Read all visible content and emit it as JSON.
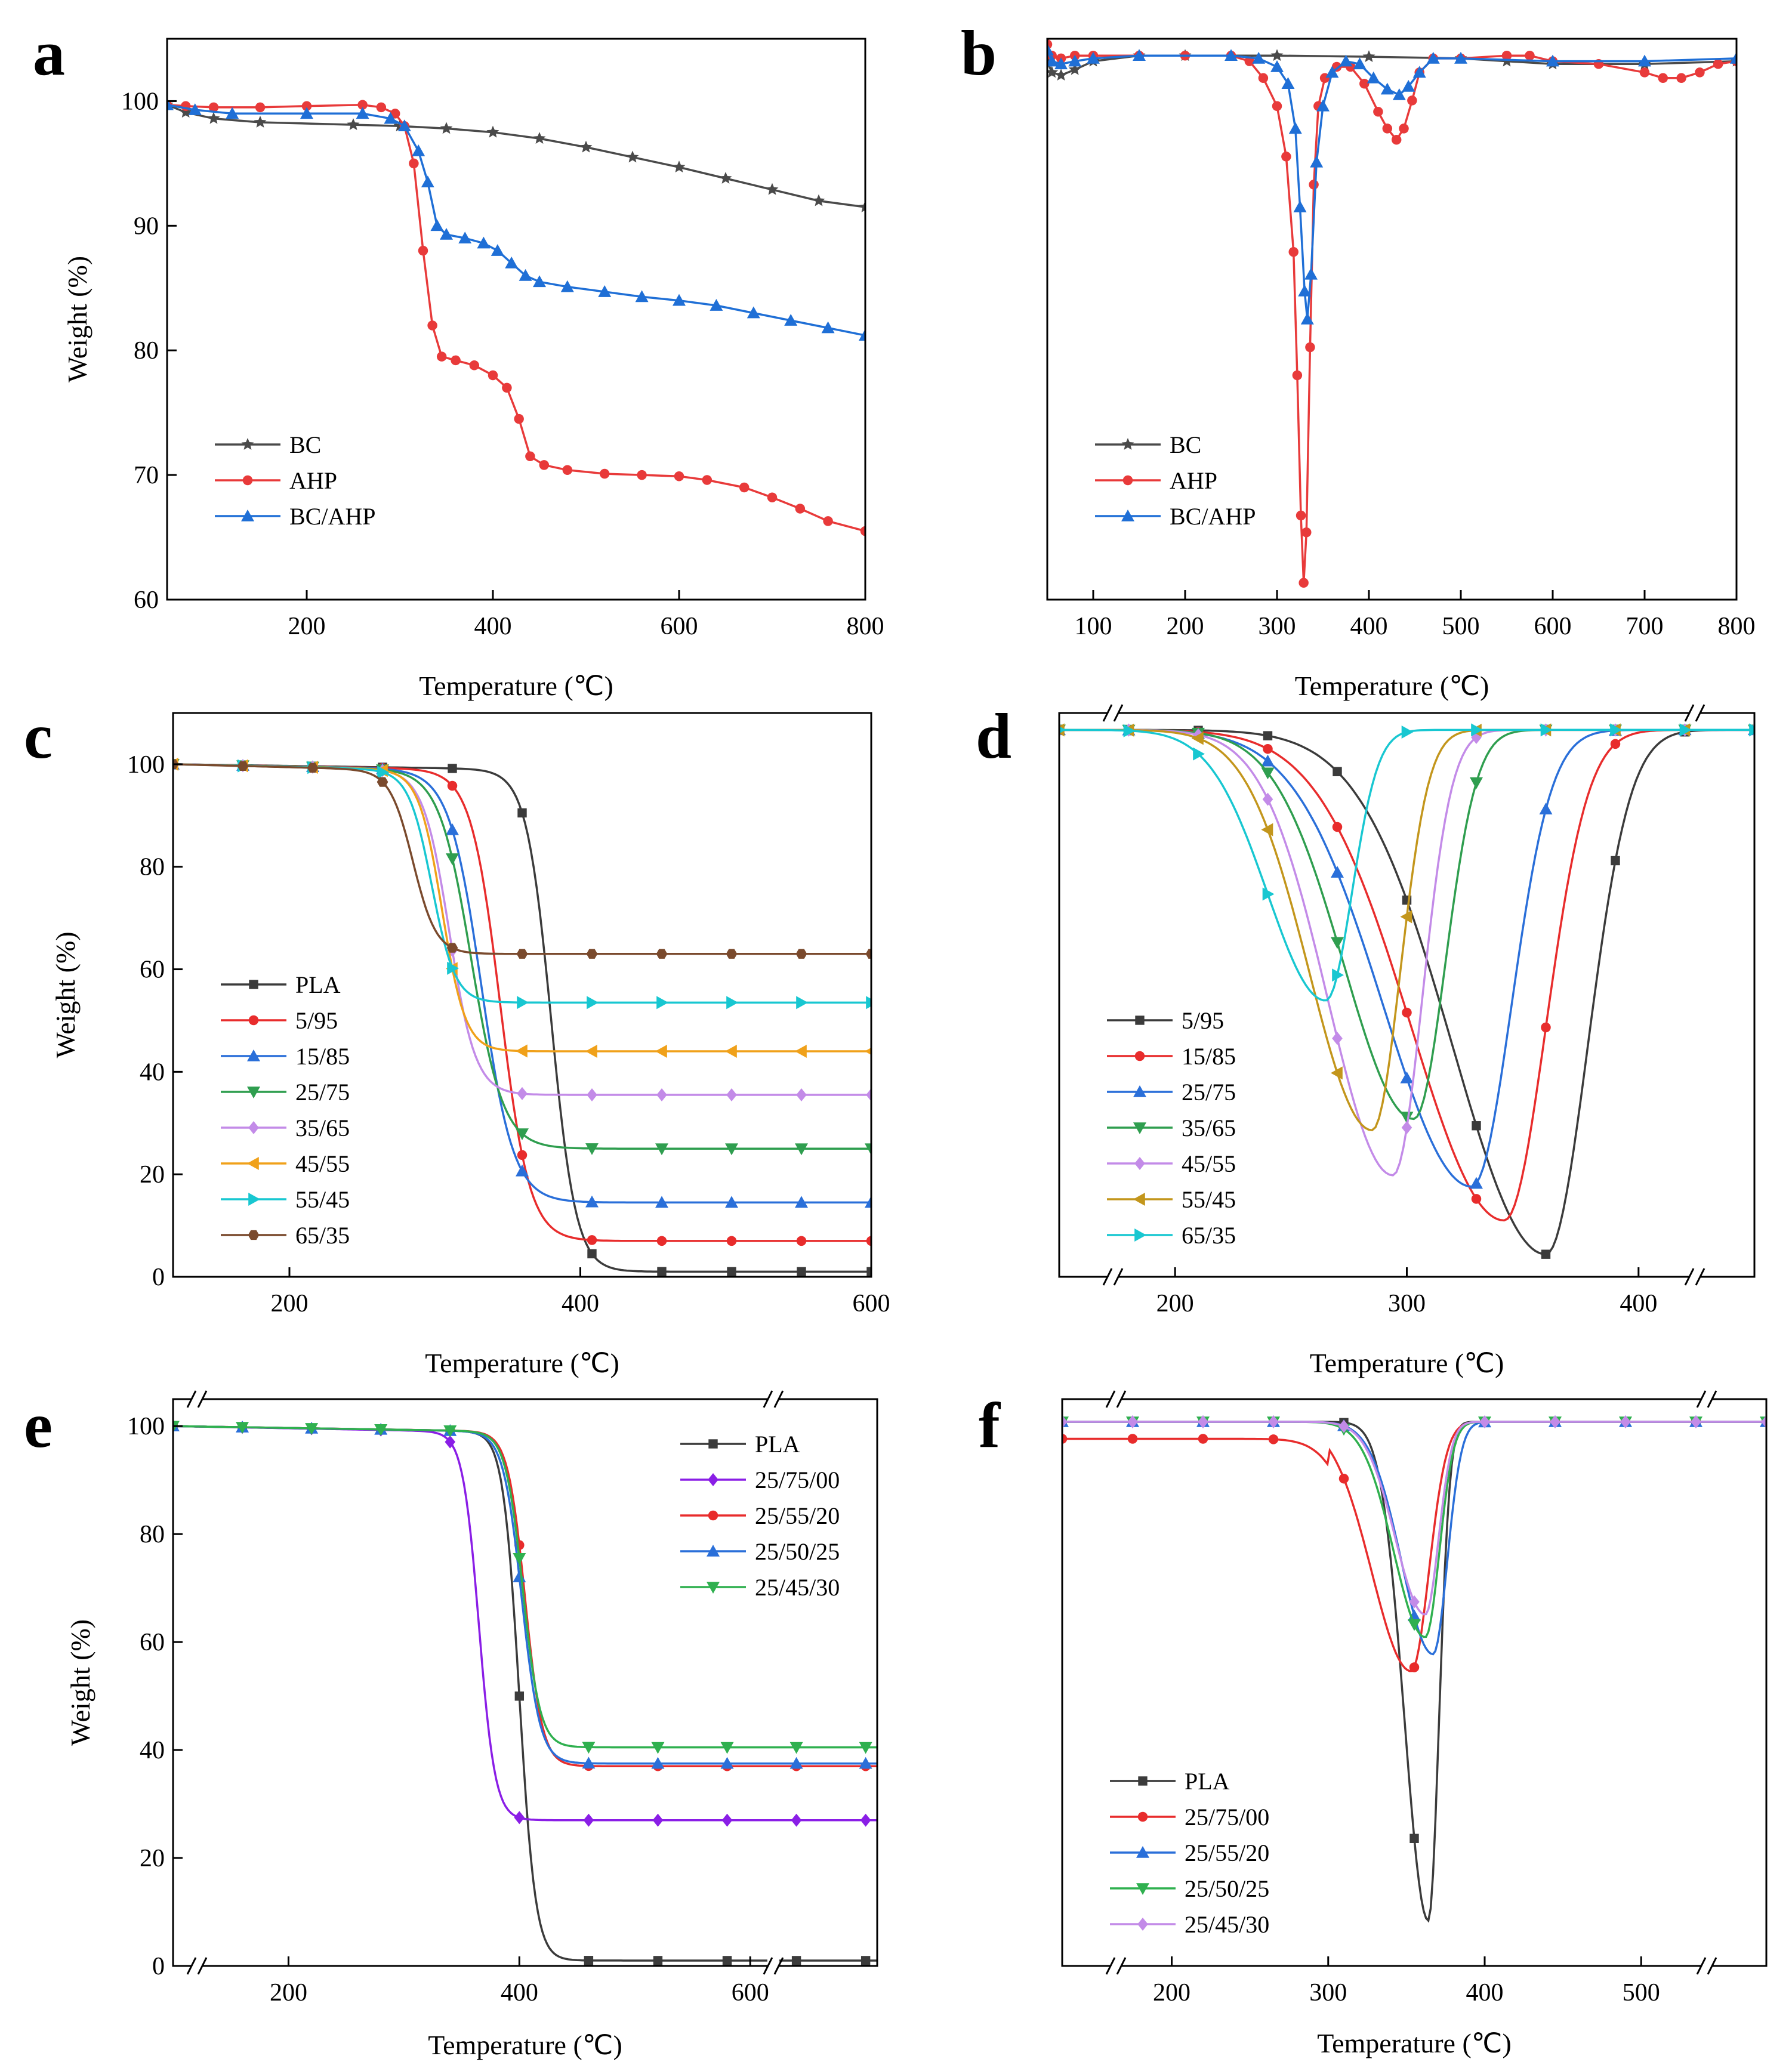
{
  "chart_data": [
    {
      "panel": "a",
      "type": "line",
      "xlabel": "Temperature (℃)",
      "ylabel": "Weight (%)",
      "xlim": [
        50,
        800
      ],
      "ylim": [
        60,
        105
      ],
      "xticks": [
        200,
        400,
        600,
        800
      ],
      "yticks": [
        60,
        70,
        80,
        90,
        100
      ],
      "legend": "bottom-left",
      "series": [
        {
          "name": "BC",
          "color": "#4a4a4a",
          "marker": "star",
          "points": [
            [
              50,
              99.7
            ],
            [
              70,
              99.1
            ],
            [
              100,
              98.6
            ],
            [
              150,
              98.3
            ],
            [
              250,
              98.1
            ],
            [
              300,
              98.0
            ],
            [
              350,
              97.8
            ],
            [
              400,
              97.5
            ],
            [
              450,
              97.0
            ],
            [
              500,
              96.3
            ],
            [
              550,
              95.5
            ],
            [
              600,
              94.7
            ],
            [
              650,
              93.8
            ],
            [
              700,
              92.9
            ],
            [
              750,
              92.0
            ],
            [
              800,
              91.5
            ]
          ]
        },
        {
          "name": "AHP",
          "color": "#e83a3a",
          "marker": "circle",
          "points": [
            [
              50,
              99.7
            ],
            [
              70,
              99.6
            ],
            [
              100,
              99.5
            ],
            [
              150,
              99.5
            ],
            [
              200,
              99.6
            ],
            [
              260,
              99.7
            ],
            [
              280,
              99.5
            ],
            [
              295,
              99.0
            ],
            [
              305,
              98.0
            ],
            [
              315,
              95.0
            ],
            [
              325,
              88.0
            ],
            [
              335,
              82.0
            ],
            [
              345,
              79.5
            ],
            [
              360,
              79.2
            ],
            [
              380,
              78.8
            ],
            [
              400,
              78.0
            ],
            [
              415,
              77.0
            ],
            [
              428,
              74.5
            ],
            [
              440,
              71.5
            ],
            [
              455,
              70.8
            ],
            [
              480,
              70.4
            ],
            [
              520,
              70.1
            ],
            [
              560,
              70.0
            ],
            [
              600,
              69.9
            ],
            [
              630,
              69.6
            ],
            [
              670,
              69.0
            ],
            [
              700,
              68.2
            ],
            [
              730,
              67.3
            ],
            [
              760,
              66.3
            ],
            [
              800,
              65.5
            ]
          ]
        },
        {
          "name": "BC/AHP",
          "color": "#1f6fd6",
          "marker": "triangle",
          "points": [
            [
              50,
              99.7
            ],
            [
              80,
              99.3
            ],
            [
              120,
              99.0
            ],
            [
              200,
              99.0
            ],
            [
              260,
              99.0
            ],
            [
              290,
              98.6
            ],
            [
              305,
              98.0
            ],
            [
              320,
              96.0
            ],
            [
              330,
              93.5
            ],
            [
              340,
              90.0
            ],
            [
              350,
              89.3
            ],
            [
              370,
              89.0
            ],
            [
              390,
              88.6
            ],
            [
              405,
              88.0
            ],
            [
              420,
              87.0
            ],
            [
              435,
              86.0
            ],
            [
              450,
              85.5
            ],
            [
              480,
              85.1
            ],
            [
              520,
              84.7
            ],
            [
              560,
              84.3
            ],
            [
              600,
              84.0
            ],
            [
              640,
              83.6
            ],
            [
              680,
              83.0
            ],
            [
              720,
              82.4
            ],
            [
              760,
              81.8
            ],
            [
              800,
              81.2
            ]
          ]
        }
      ]
    },
    {
      "panel": "b",
      "type": "line",
      "xlabel": "Temperature (℃)",
      "ylabel": "",
      "xlim": [
        50,
        800
      ],
      "ylim": [
        0,
        100
      ],
      "xticks": [
        100,
        200,
        300,
        400,
        500,
        600,
        700,
        800
      ],
      "legend": "bottom-left",
      "series": [
        {
          "name": "BC",
          "color": "#4a4a4a",
          "marker": "star",
          "points": [
            [
              50,
              96
            ],
            [
              55,
              94
            ],
            [
              65,
              93.5
            ],
            [
              80,
              94.5
            ],
            [
              100,
              96
            ],
            [
              150,
              97
            ],
            [
              200,
              97
            ],
            [
              300,
              97
            ],
            [
              400,
              96.8
            ],
            [
              500,
              96.5
            ],
            [
              550,
              96
            ],
            [
              600,
              95.5
            ],
            [
              700,
              95.5
            ],
            [
              800,
              96
            ]
          ]
        },
        {
          "name": "AHP",
          "color": "#e83a3a",
          "marker": "circle",
          "points": [
            [
              50,
              99
            ],
            [
              55,
              97
            ],
            [
              65,
              96.5
            ],
            [
              80,
              97
            ],
            [
              100,
              97
            ],
            [
              150,
              97
            ],
            [
              200,
              97
            ],
            [
              250,
              97
            ],
            [
              270,
              96
            ],
            [
              285,
              93
            ],
            [
              300,
              88
            ],
            [
              310,
              79
            ],
            [
              318,
              62
            ],
            [
              322,
              40
            ],
            [
              326,
              15
            ],
            [
              329,
              3
            ],
            [
              332,
              12
            ],
            [
              336,
              45
            ],
            [
              340,
              74
            ],
            [
              345,
              88
            ],
            [
              352,
              93
            ],
            [
              365,
              95
            ],
            [
              380,
              95
            ],
            [
              395,
              92
            ],
            [
              410,
              87
            ],
            [
              420,
              84
            ],
            [
              430,
              82
            ],
            [
              438,
              84
            ],
            [
              447,
              89
            ],
            [
              455,
              94
            ],
            [
              470,
              96.5
            ],
            [
              500,
              96.5
            ],
            [
              550,
              97
            ],
            [
              575,
              97
            ],
            [
              600,
              96
            ],
            [
              650,
              95.5
            ],
            [
              700,
              94
            ],
            [
              720,
              93
            ],
            [
              740,
              93
            ],
            [
              760,
              94
            ],
            [
              780,
              95.5
            ],
            [
              800,
              96
            ]
          ]
        },
        {
          "name": "BC/AHP",
          "color": "#1f6fd6",
          "marker": "triangle",
          "points": [
            [
              50,
              98
            ],
            [
              55,
              96
            ],
            [
              65,
              95.5
            ],
            [
              80,
              96
            ],
            [
              100,
              96.5
            ],
            [
              150,
              97
            ],
            [
              250,
              97
            ],
            [
              280,
              96.5
            ],
            [
              300,
              95
            ],
            [
              312,
              92
            ],
            [
              320,
              84
            ],
            [
              325,
              70
            ],
            [
              330,
              55
            ],
            [
              333,
              50
            ],
            [
              337,
              58
            ],
            [
              343,
              78
            ],
            [
              350,
              88
            ],
            [
              360,
              94
            ],
            [
              375,
              96
            ],
            [
              390,
              95.5
            ],
            [
              405,
              93
            ],
            [
              420,
              91
            ],
            [
              433,
              90
            ],
            [
              443,
              91.5
            ],
            [
              455,
              94
            ],
            [
              470,
              96.5
            ],
            [
              500,
              96.5
            ],
            [
              600,
              96
            ],
            [
              700,
              96
            ],
            [
              800,
              96.5
            ]
          ]
        }
      ]
    },
    {
      "panel": "c",
      "type": "line",
      "xlabel": "Temperature (℃)",
      "ylabel": "Weight (%)",
      "xlim": [
        120,
        600
      ],
      "ylim": [
        0,
        110
      ],
      "xticks": [
        200,
        400,
        600
      ],
      "yticks": [
        0,
        20,
        40,
        60,
        80,
        100
      ],
      "legend": "bottom-left",
      "series": [
        {
          "name": "PLA",
          "color": "#3b3b3b",
          "marker": "square",
          "onset": 340,
          "k": 8.5,
          "residue": 1
        },
        {
          "name": "5/95",
          "color": "#e82c2c",
          "marker": "circle",
          "onset": 305,
          "k": 10,
          "residue": 7
        },
        {
          "name": "15/85",
          "color": "#2a6fd9",
          "marker": "triangle",
          "onset": 292,
          "k": 11,
          "residue": 14.5
        },
        {
          "name": "25/75",
          "color": "#2f9e4f",
          "marker": "triangle-down",
          "onset": 285,
          "k": 11,
          "residue": 25
        },
        {
          "name": "35/65",
          "color": "#c38be8",
          "marker": "diamond",
          "onset": 270,
          "k": 9,
          "residue": 35.5
        },
        {
          "name": "45/55",
          "color": "#f0a11a",
          "marker": "triangle-left",
          "onset": 265,
          "k": 8,
          "residue": 44
        },
        {
          "name": "55/45",
          "color": "#18c7d1",
          "marker": "triangle-right",
          "onset": 258,
          "k": 8,
          "residue": 53.5
        },
        {
          "name": "65/35",
          "color": "#7a4a2d",
          "marker": "hexagon",
          "onset": 245,
          "k": 8,
          "residue": 63
        }
      ],
      "labeled_points": "curves are sigmoidal mass-loss traces from 100% to each residue"
    },
    {
      "panel": "d",
      "type": "line",
      "xlabel": "Temperature (℃)",
      "ylabel": "",
      "xlim": [
        150,
        450
      ],
      "ylim": [
        0,
        100
      ],
      "xticks": [
        200,
        300,
        400
      ],
      "axis_break": "both ends",
      "legend": "bottom-left",
      "series": [
        {
          "name": "5/95",
          "color": "#3b3b3b",
          "marker": "square",
          "peak_T": 360,
          "depth": 93,
          "width": 40
        },
        {
          "name": "15/85",
          "color": "#e82c2c",
          "marker": "circle",
          "peak_T": 342,
          "depth": 87,
          "width": 40
        },
        {
          "name": "25/75",
          "color": "#2a6fd9",
          "marker": "triangle",
          "peak_T": 328,
          "depth": 81,
          "width": 38
        },
        {
          "name": "35/65",
          "color": "#2f9e4f",
          "marker": "triangle-down",
          "peak_T": 303,
          "depth": 69,
          "width": 30
        },
        {
          "name": "45/55",
          "color": "#c38be8",
          "marker": "diamond",
          "peak_T": 294,
          "depth": 79,
          "width": 28
        },
        {
          "name": "55/45",
          "color": "#c3961c",
          "marker": "triangle-left",
          "peak_T": 285,
          "depth": 71,
          "width": 27
        },
        {
          "name": "65/35",
          "color": "#18c7d1",
          "marker": "triangle-right",
          "peak_T": 265,
          "depth": 48,
          "width": 25
        }
      ]
    },
    {
      "panel": "e",
      "type": "line",
      "xlabel": "Temperature (℃)",
      "ylabel": "Weight (%)",
      "xlim": [
        100,
        710
      ],
      "ylim": [
        0,
        105
      ],
      "xticks": [
        200,
        400,
        600
      ],
      "yticks": [
        0,
        20,
        40,
        60,
        80,
        100
      ],
      "axis_break": "x near 620",
      "legend": "top-right",
      "series": [
        {
          "name": "PLA",
          "color": "#3b3b3b",
          "marker": "square",
          "onset": 360,
          "k": 7,
          "residue": 1
        },
        {
          "name": "25/75/00",
          "color": "#8a1ee6",
          "marker": "diamond",
          "onset": 325,
          "k": 7,
          "residue": 27
        },
        {
          "name": "25/55/20",
          "color": "#e82c2c",
          "marker": "circle",
          "onset": 365,
          "k": 7.5,
          "residue": 37
        },
        {
          "name": "25/50/25",
          "color": "#2a6fd9",
          "marker": "triangle",
          "onset": 362,
          "k": 8,
          "residue": 37.5
        },
        {
          "name": "25/45/30",
          "color": "#2fb04f",
          "marker": "triangle-down",
          "onset": 363,
          "k": 7.5,
          "residue": 40.5
        }
      ]
    },
    {
      "panel": "f",
      "type": "line",
      "xlabel": "Temperature (℃)",
      "ylabel": "",
      "xlim": [
        130,
        580
      ],
      "ylim": [
        0,
        100
      ],
      "xticks": [
        200,
        300,
        400,
        500
      ],
      "axis_break": "both ends",
      "legend": "bottom-left",
      "series": [
        {
          "name": "PLA",
          "color": "#3b3b3b",
          "marker": "square",
          "peak_T": 364,
          "depth": 88,
          "width": 15
        },
        {
          "name": "25/75/00",
          "color": "#e82c2c",
          "marker": "circle",
          "peak_T": 353,
          "depth": 44,
          "width": 25
        },
        {
          "name": "25/55/20",
          "color": "#2a6fd9",
          "marker": "triangle",
          "peak_T": 367,
          "depth": 41,
          "width": 20
        },
        {
          "name": "25/50/25",
          "color": "#2fb04f",
          "marker": "triangle-down",
          "peak_T": 362,
          "depth": 38,
          "width": 20
        },
        {
          "name": "25/45/30",
          "color": "#c38be8",
          "marker": "diamond",
          "peak_T": 362,
          "depth": 34,
          "width": 19
        }
      ]
    }
  ],
  "panel_labels": [
    "a",
    "b",
    "c",
    "d",
    "e",
    "f"
  ],
  "common": {
    "xlabel": "Temperature (℃)",
    "ylabel": "Weight (%)"
  }
}
